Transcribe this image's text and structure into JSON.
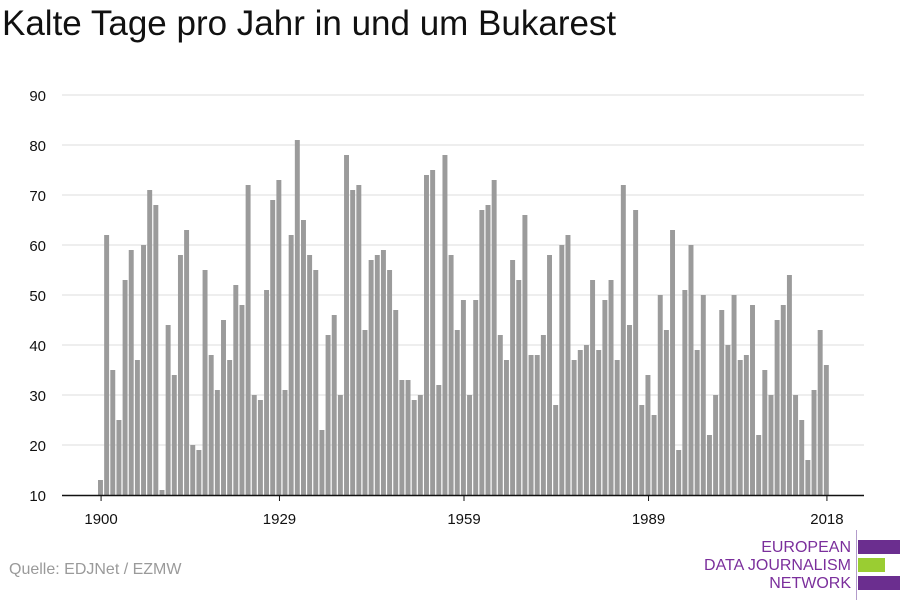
{
  "title": "Kalte Tage pro Jahr in und um Bukarest",
  "source": "Quelle: EDJNet / EZMW",
  "logo": {
    "line1": "EUROPEAN",
    "line2": "DATA JOURNALISM",
    "line3": "NETWORK",
    "colors": [
      "#6b2e8f",
      "#9acd32",
      "#6b2e8f"
    ]
  },
  "colors": {
    "bar": "#9b9b9b",
    "grid": "#dcdcdc",
    "axis": "#111111",
    "text": "#111111"
  },
  "chart_data": {
    "type": "bar",
    "title": "Kalte Tage pro Jahr in und um Bukarest",
    "xlabel": "",
    "ylabel": "",
    "x_start": 1900,
    "x_end": 2018,
    "xticks": [
      1900,
      1929,
      1959,
      1989,
      2018
    ],
    "yticks": [
      10,
      20,
      30,
      40,
      50,
      60,
      70,
      80,
      90
    ],
    "ylim": [
      10,
      90
    ],
    "grid": true,
    "values": [
      13,
      62,
      35,
      25,
      53,
      59,
      37,
      60,
      71,
      68,
      11,
      44,
      34,
      58,
      63,
      20,
      19,
      55,
      38,
      31,
      45,
      37,
      52,
      48,
      72,
      30,
      29,
      51,
      69,
      73,
      31,
      62,
      81,
      65,
      58,
      55,
      23,
      42,
      46,
      30,
      78,
      71,
      72,
      43,
      57,
      58,
      59,
      55,
      47,
      33,
      33,
      29,
      30,
      74,
      75,
      32,
      78,
      58,
      43,
      49,
      30,
      49,
      67,
      68,
      73,
      42,
      37,
      57,
      53,
      66,
      38,
      38,
      42,
      58,
      28,
      60,
      62,
      37,
      39,
      40,
      53,
      39,
      49,
      53,
      37,
      72,
      44,
      67,
      28,
      34,
      26,
      50,
      43,
      63,
      19,
      51,
      60,
      39,
      50,
      22,
      30,
      47,
      40,
      50,
      37,
      38,
      48,
      22,
      35,
      30,
      45,
      48,
      54,
      30,
      25,
      17,
      31,
      43,
      36
    ]
  }
}
